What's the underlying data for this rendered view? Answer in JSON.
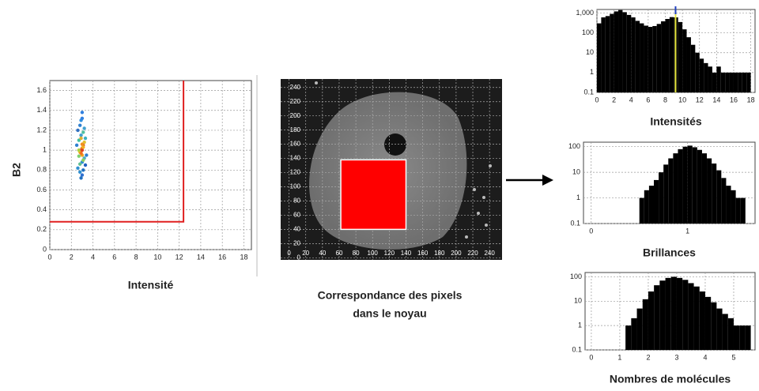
{
  "chart_data": [
    {
      "type": "scatter",
      "xlabel": "Intensité",
      "ylabel": "B2",
      "x": [
        2.9,
        3.0,
        2.8,
        3.1,
        3.0,
        2.7,
        3.2,
        2.9,
        3.0,
        2.6,
        3.3,
        2.8,
        3.1,
        2.9,
        3.0,
        2.7,
        3.2,
        3.0,
        2.8,
        3.1,
        2.5,
        3.4,
        2.9,
        3.0,
        3.1,
        2.8,
        2.9,
        3.2,
        2.7,
        3.0,
        2.6,
        3.3,
        3.0,
        2.9,
        3.1
      ],
      "values": [
        1.0,
        1.02,
        0.98,
        1.05,
        0.95,
        1.1,
        0.92,
        1.15,
        0.88,
        1.2,
        0.85,
        1.25,
        0.8,
        1.3,
        0.75,
        1.0,
        1.08,
        1.32,
        0.78,
        1.18,
        1.05,
        0.95,
        0.72,
        1.38,
        0.9,
        0.86,
        1.12,
        1.22,
        0.94,
        1.06,
        0.82,
        1.12,
        1.0,
        0.97,
        1.03
      ],
      "colors": [
        "#e03020",
        "#f08020",
        "#f0c020",
        "#e06020",
        "#f0a020",
        "#40c0a0",
        "#50b0c0",
        "#40a0d0",
        "#3090d0",
        "#3070c0",
        "#2060c0",
        "#3080d0",
        "#2070c0",
        "#3090e0",
        "#3070d0",
        "#b0d040",
        "#e0c030",
        "#3080e0",
        "#3090d0",
        "#50c0a0",
        "#3080d0",
        "#3080d0",
        "#2070c0",
        "#3080e0",
        "#90d060",
        "#60c090",
        "#e0b030",
        "#40a0d0",
        "#80d070",
        "#f09020",
        "#3090d0",
        "#40b0c0",
        "#e04020",
        "#f07020",
        "#f0b020"
      ],
      "xlim": [
        0,
        18.7
      ],
      "ylim": [
        0,
        1.7
      ],
      "xticks": [
        0,
        2,
        4,
        6,
        8,
        10,
        12,
        14,
        16,
        18
      ],
      "yticks": [
        0,
        0.2,
        0.4,
        0.6,
        0.8,
        1,
        1.2,
        1.4,
        1.6
      ],
      "grid": true,
      "threshold_x": 12.4,
      "threshold_y": 0.28,
      "threshold_color": "#e02020"
    },
    {
      "type": "image",
      "title_lines": [
        "Correspondance des pixels",
        "dans le noyau"
      ],
      "xlim": [
        -10,
        255
      ],
      "ylim": [
        -3,
        252
      ],
      "xticks": [
        0,
        20,
        40,
        60,
        80,
        100,
        120,
        140,
        160,
        180,
        200,
        220,
        240
      ],
      "yticks": [
        0,
        20,
        40,
        60,
        80,
        100,
        120,
        140,
        160,
        180,
        200,
        220,
        240
      ],
      "grid": true,
      "selection_x": [
        62,
        140
      ],
      "selection_y": [
        40,
        138
      ],
      "selection_color": "#ff0000"
    },
    {
      "type": "histogram",
      "title": "Intensités",
      "log_y": true,
      "bins": [
        0,
        0.5,
        1,
        1.5,
        2,
        2.5,
        3,
        3.5,
        4,
        4.5,
        5,
        5.5,
        6,
        6.5,
        7,
        7.5,
        8,
        8.5,
        9,
        9.5,
        10,
        10.5,
        11,
        11.5,
        12,
        12.5,
        13,
        13.5,
        14,
        14.5,
        15,
        15.5,
        16,
        16.5,
        17,
        17.5,
        18
      ],
      "values": [
        300,
        600,
        700,
        900,
        1200,
        1400,
        1100,
        800,
        600,
        400,
        300,
        230,
        200,
        220,
        280,
        380,
        500,
        620,
        600,
        350,
        150,
        60,
        25,
        10,
        5,
        3,
        2,
        1,
        2,
        1,
        1,
        1,
        1,
        1,
        1,
        1
      ],
      "color": "#000000",
      "xlim": [
        0,
        18.5
      ],
      "ylim": [
        0.1,
        1500
      ],
      "xticks": [
        0,
        2,
        4,
        6,
        8,
        10,
        12,
        14,
        16,
        18
      ],
      "yticks": [
        0.1,
        1,
        10,
        100,
        {
          "value": 1000,
          "label": "1,000"
        }
      ],
      "grid": true,
      "marker": 9.2,
      "marker_color": "#e8e840"
    },
    {
      "type": "histogram",
      "title": "Brillances",
      "log_y": true,
      "bins": [
        0.5,
        0.55,
        0.6,
        0.65,
        0.7,
        0.75,
        0.8,
        0.85,
        0.9,
        0.95,
        1,
        1.05,
        1.1,
        1.15,
        1.2,
        1.25,
        1.3,
        1.35,
        1.4,
        1.45,
        1.5,
        1.55,
        1.6
      ],
      "values": [
        1,
        2,
        3,
        5,
        10,
        20,
        35,
        55,
        80,
        100,
        110,
        95,
        75,
        55,
        35,
        22,
        12,
        6,
        3,
        2,
        1,
        1
      ],
      "color": "#000000",
      "xlim": [
        -0.08,
        1.7
      ],
      "ylim": [
        0.1,
        150
      ],
      "xticks": [
        0,
        1
      ],
      "yticks": [
        0.1,
        1,
        10,
        100
      ],
      "grid": true
    },
    {
      "type": "histogram",
      "title": "Nombres de molécules",
      "log_y": true,
      "bins": [
        1.2,
        1.4,
        1.6,
        1.8,
        2,
        2.2,
        2.4,
        2.6,
        2.8,
        3,
        3.2,
        3.4,
        3.6,
        3.8,
        4,
        4.2,
        4.4,
        4.6,
        4.8,
        5,
        5.2,
        5.4,
        5.6
      ],
      "values": [
        1,
        2,
        5,
        12,
        25,
        45,
        70,
        90,
        100,
        90,
        75,
        55,
        40,
        25,
        15,
        9,
        5,
        3,
        2,
        1,
        1,
        1
      ],
      "color": "#000000",
      "xlim": [
        -0.22,
        5.75
      ],
      "ylim": [
        0.1,
        150
      ],
      "xticks": [
        0,
        1,
        2,
        3,
        4,
        5
      ],
      "yticks": [
        0.1,
        1,
        10,
        100
      ],
      "grid": true
    }
  ]
}
